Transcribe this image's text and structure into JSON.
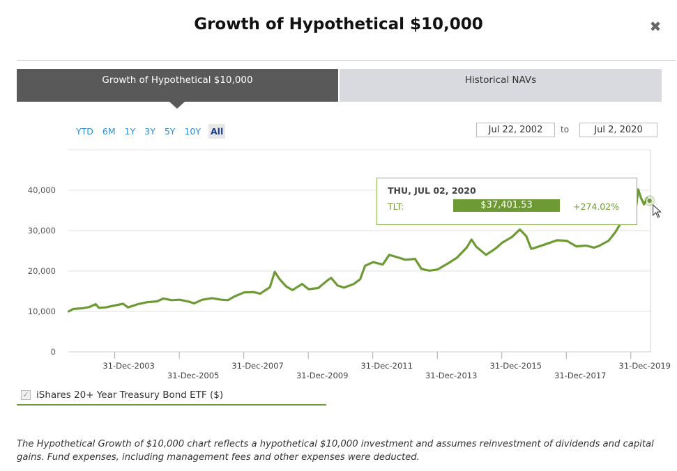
{
  "modal": {
    "title": "Growth of Hypothetical $10,000",
    "close_icon": "close-icon"
  },
  "tabs": [
    {
      "label": "Growth of Hypothetical $10,000",
      "active": true
    },
    {
      "label": "Historical NAVs",
      "active": false
    }
  ],
  "ranges": [
    "YTD",
    "6M",
    "1Y",
    "3Y",
    "5Y",
    "10Y",
    "All"
  ],
  "selected_range": "All",
  "date_range": {
    "from": "Jul 22, 2002",
    "separator": "to",
    "to": "Jul 2, 2020"
  },
  "tooltip": {
    "date": "THU, JUL 02, 2020",
    "ticker": "TLT:",
    "value": "$37,401.53",
    "change": "+274.02%"
  },
  "legend": {
    "checked": true,
    "label": "iShares 20+ Year Treasury Bond ETF ($)"
  },
  "footnote": "The Hypothetical Growth of $10,000 chart reflects a hypothetical $10,000 investment and assumes reinvestment of dividends and capital gains. Fund expenses, including management fees and other expenses were deducted.",
  "colors": {
    "series": "#6d9a34",
    "tab_active": "#595959",
    "tab_inactive": "#d9d9e0",
    "range_link": "#2a8fd4"
  },
  "chart_data": {
    "type": "line",
    "title": "",
    "xlabel": "",
    "ylabel": "",
    "ylim": [
      0,
      45000
    ],
    "yticks": [
      0,
      10000,
      20000,
      30000,
      40000
    ],
    "ytick_labels": [
      "0",
      "10,000",
      "20,000",
      "30,000",
      "40,000"
    ],
    "xticks": [
      {
        "label": "31-Dec-2003",
        "x": 2003.99,
        "row": 0
      },
      {
        "label": "31-Dec-2005",
        "x": 2005.99,
        "row": 1
      },
      {
        "label": "31-Dec-2007",
        "x": 2007.99,
        "row": 0
      },
      {
        "label": "31-Dec-2009",
        "x": 2009.99,
        "row": 1
      },
      {
        "label": "31-Dec-2011",
        "x": 2011.99,
        "row": 0
      },
      {
        "label": "31-Dec-2013",
        "x": 2013.99,
        "row": 1
      },
      {
        "label": "31-Dec-2015",
        "x": 2015.99,
        "row": 0
      },
      {
        "label": "31-Dec-2017",
        "x": 2017.99,
        "row": 1
      },
      {
        "label": "31-Dec-2019",
        "x": 2019.99,
        "row": 0
      }
    ],
    "xlim": [
      2002.55,
      2020.6
    ],
    "grid": true,
    "series": [
      {
        "values": [
          [
            2002.56,
            10000
          ],
          [
            2002.7,
            10600
          ],
          [
            2003.0,
            10800
          ],
          [
            2003.2,
            11100
          ],
          [
            2003.4,
            11800
          ],
          [
            2003.5,
            10900
          ],
          [
            2003.7,
            11000
          ],
          [
            2004.0,
            11500
          ],
          [
            2004.25,
            11900
          ],
          [
            2004.4,
            11000
          ],
          [
            2004.7,
            11800
          ],
          [
            2005.0,
            12300
          ],
          [
            2005.3,
            12500
          ],
          [
            2005.5,
            13200
          ],
          [
            2005.75,
            12800
          ],
          [
            2006.0,
            12900
          ],
          [
            2006.3,
            12400
          ],
          [
            2006.45,
            12000
          ],
          [
            2006.7,
            12900
          ],
          [
            2007.0,
            13300
          ],
          [
            2007.3,
            12900
          ],
          [
            2007.5,
            12800
          ],
          [
            2007.7,
            13700
          ],
          [
            2008.0,
            14700
          ],
          [
            2008.3,
            14800
          ],
          [
            2008.5,
            14400
          ],
          [
            2008.8,
            16000
          ],
          [
            2008.95,
            19800
          ],
          [
            2009.1,
            18000
          ],
          [
            2009.3,
            16200
          ],
          [
            2009.5,
            15300
          ],
          [
            2009.8,
            16800
          ],
          [
            2010.0,
            15500
          ],
          [
            2010.3,
            15800
          ],
          [
            2010.6,
            17800
          ],
          [
            2010.7,
            18300
          ],
          [
            2010.9,
            16400
          ],
          [
            2011.1,
            15900
          ],
          [
            2011.4,
            16800
          ],
          [
            2011.6,
            18000
          ],
          [
            2011.75,
            21300
          ],
          [
            2012.0,
            22200
          ],
          [
            2012.3,
            21600
          ],
          [
            2012.5,
            24000
          ],
          [
            2012.8,
            23300
          ],
          [
            2013.0,
            22800
          ],
          [
            2013.3,
            23000
          ],
          [
            2013.5,
            20500
          ],
          [
            2013.75,
            20100
          ],
          [
            2014.0,
            20400
          ],
          [
            2014.3,
            21800
          ],
          [
            2014.6,
            23300
          ],
          [
            2014.9,
            25800
          ],
          [
            2015.05,
            27800
          ],
          [
            2015.2,
            26000
          ],
          [
            2015.5,
            24000
          ],
          [
            2015.8,
            25600
          ],
          [
            2016.0,
            27000
          ],
          [
            2016.3,
            28400
          ],
          [
            2016.55,
            30300
          ],
          [
            2016.75,
            28600
          ],
          [
            2016.9,
            25500
          ],
          [
            2017.0,
            25700
          ],
          [
            2017.3,
            26500
          ],
          [
            2017.7,
            27600
          ],
          [
            2018.0,
            27500
          ],
          [
            2018.3,
            26100
          ],
          [
            2018.6,
            26300
          ],
          [
            2018.85,
            25800
          ],
          [
            2019.0,
            26200
          ],
          [
            2019.3,
            27500
          ],
          [
            2019.5,
            29500
          ],
          [
            2019.65,
            31500
          ],
          [
            2019.75,
            32000
          ],
          [
            2020.0,
            32800
          ],
          [
            2020.15,
            35500
          ],
          [
            2020.22,
            40200
          ],
          [
            2020.3,
            38200
          ],
          [
            2020.4,
            36500
          ],
          [
            2020.5,
            38000
          ],
          [
            2020.57,
            37401.53
          ]
        ]
      }
    ]
  }
}
